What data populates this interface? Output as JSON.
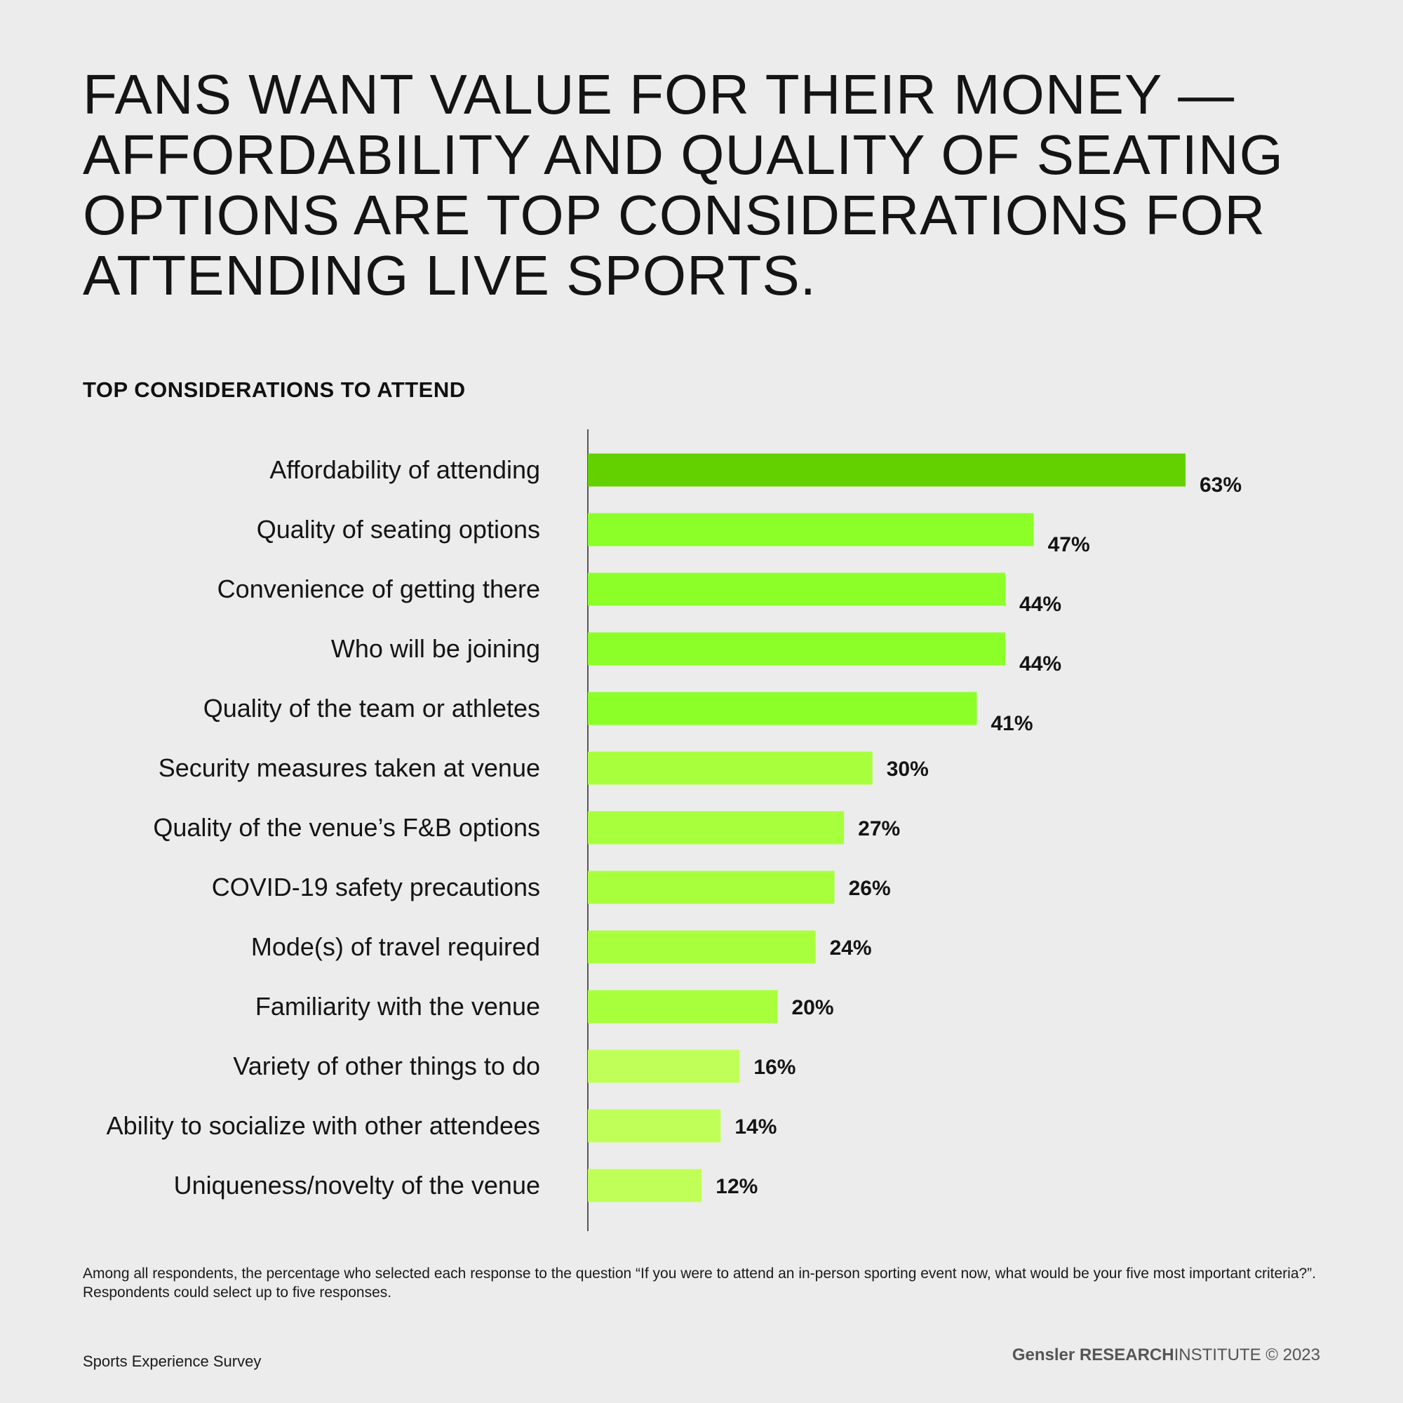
{
  "title_lines": [
    "FANS WANT VALUE FOR THEIR MONEY —",
    "AFFORDABILITY AND QUALITY OF SEATING",
    "OPTIONS ARE TOP CONSIDERATIONS FOR",
    "ATTENDING LIVE SPORTS."
  ],
  "chart_data": {
    "type": "bar",
    "orientation": "horizontal",
    "title": "TOP CONSIDERATIONS TO ATTEND",
    "categories": [
      "Affordability of attending",
      "Quality of seating options",
      "Convenience of getting there",
      "Who will be joining",
      "Quality of the team or athletes",
      "Security measures taken at venue",
      "Quality of the venue’s F&B options",
      "COVID-19 safety precautions",
      "Mode(s) of travel required",
      "Familiarity with the venue",
      "Variety of other things to do",
      "Ability to socialize with other attendees",
      "Uniqueness/novelty of the venue"
    ],
    "values": [
      63,
      47,
      44,
      44,
      41,
      30,
      27,
      26,
      24,
      20,
      16,
      14,
      12
    ],
    "value_labels": [
      "63%",
      "47%",
      "44%",
      "44%",
      "41%",
      "30%",
      "27%",
      "26%",
      "24%",
      "20%",
      "16%",
      "14%",
      "12%"
    ],
    "colors": [
      "#63d100",
      "#8cff28",
      "#8cff28",
      "#8cff28",
      "#8cff28",
      "#a8ff3c",
      "#a8ff3c",
      "#a8ff3c",
      "#a8ff3c",
      "#a8ff3c",
      "#c0ff58",
      "#c0ff58",
      "#c0ff58"
    ],
    "xlim": [
      0,
      63
    ],
    "grid": false
  },
  "footnote": "Among all respondents, the percentage who selected each response to the question “If you were to attend an in-person sporting event now, what would be your five most important criteria?”. Respondents could select up to five responses.",
  "source": "Sports Experience Survey",
  "brand": {
    "name": "Gensler",
    "research": "RESEARCH",
    "institute": "INSTITUTE",
    "copyright": "© 2023"
  }
}
